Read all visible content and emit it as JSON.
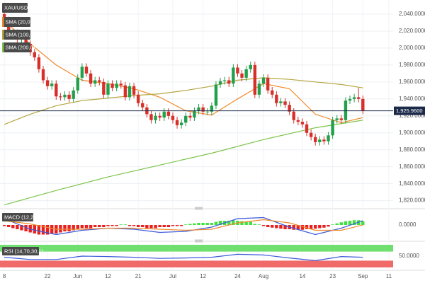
{
  "chart_data": [
    {
      "type": "candlestick",
      "title": "XAU/USD",
      "up_color": "#22a04b",
      "down_color": "#d7302a",
      "open": [
        2040,
        2033,
        2015,
        2018,
        2010,
        2012,
        2005,
        1995,
        1989,
        1975,
        1962,
        1955,
        1958,
        1943,
        1942,
        1945,
        1940,
        1950,
        1965,
        1978,
        1970,
        1958,
        1962,
        1960,
        1945,
        1958,
        1953,
        1958,
        1956,
        1942,
        1955,
        1945,
        1935,
        1930,
        1922,
        1915,
        1920,
        1918,
        1925,
        1920,
        1915,
        1909,
        1912,
        1920,
        1918,
        1926,
        1930,
        1925,
        1925,
        1932,
        1957,
        1961,
        1962,
        1958,
        1977,
        1970,
        1965,
        1975,
        1980,
        1945,
        1958,
        1965,
        1950,
        1945,
        1935,
        1937,
        1933,
        1925,
        1915,
        1913,
        1910,
        1900,
        1895,
        1889,
        1892,
        1890,
        1897,
        1915,
        1917,
        1915,
        1938,
        1940,
        1942,
        1940
      ],
      "high": [
        2044,
        2037,
        2022,
        2022,
        2016,
        2016,
        2009,
        1999,
        1993,
        1979,
        1966,
        1962,
        1962,
        1947,
        1949,
        1949,
        1954,
        1969,
        1982,
        1982,
        1974,
        1966,
        1966,
        1964,
        1962,
        1962,
        1962,
        1962,
        1960,
        1959,
        1959,
        1949,
        1939,
        1934,
        1926,
        1924,
        1924,
        1929,
        1929,
        1924,
        1919,
        1916,
        1924,
        1924,
        1930,
        1934,
        1934,
        1929,
        1936,
        1961,
        1965,
        1966,
        1966,
        1981,
        1981,
        1974,
        1979,
        1984,
        1984,
        1962,
        1969,
        1969,
        1954,
        1949,
        1941,
        1941,
        1937,
        1929,
        1919,
        1917,
        1914,
        1904,
        1899,
        1896,
        1896,
        1901,
        1919,
        1921,
        1921,
        1942,
        1944,
        1946,
        1953,
        1944
      ],
      "low": [
        2029,
        2011,
        2011,
        2006,
        2006,
        2001,
        1991,
        1985,
        1971,
        1958,
        1951,
        1951,
        1939,
        1938,
        1938,
        1936,
        1936,
        1946,
        1961,
        1966,
        1954,
        1954,
        1956,
        1941,
        1941,
        1949,
        1949,
        1952,
        1938,
        1938,
        1941,
        1931,
        1926,
        1918,
        1911,
        1911,
        1914,
        1914,
        1916,
        1911,
        1905,
        1905,
        1908,
        1914,
        1914,
        1922,
        1921,
        1921,
        1921,
        1928,
        1953,
        1957,
        1954,
        1954,
        1966,
        1961,
        1961,
        1971,
        1941,
        1941,
        1954,
        1946,
        1941,
        1931,
        1931,
        1929,
        1921,
        1911,
        1909,
        1906,
        1896,
        1891,
        1885,
        1885,
        1886,
        1886,
        1893,
        1911,
        1911,
        1911,
        1934,
        1936,
        1936,
        1922
      ],
      "close": [
        2033,
        2015,
        2018,
        2010,
        2012,
        2005,
        1995,
        1989,
        1975,
        1962,
        1955,
        1958,
        1943,
        1942,
        1945,
        1940,
        1950,
        1965,
        1978,
        1970,
        1958,
        1962,
        1960,
        1945,
        1958,
        1953,
        1958,
        1956,
        1942,
        1955,
        1945,
        1935,
        1930,
        1922,
        1915,
        1920,
        1918,
        1925,
        1920,
        1915,
        1909,
        1912,
        1920,
        1918,
        1926,
        1930,
        1925,
        1925,
        1932,
        1957,
        1961,
        1962,
        1958,
        1977,
        1970,
        1965,
        1975,
        1980,
        1945,
        1958,
        1965,
        1950,
        1945,
        1935,
        1937,
        1933,
        1925,
        1915,
        1913,
        1910,
        1900,
        1895,
        1889,
        1892,
        1890,
        1897,
        1915,
        1917,
        1915,
        1938,
        1940,
        1942,
        1940,
        1925.96
      ],
      "last_price": {
        "value": 1925.96,
        "label": "1,925.9600"
      },
      "last_color": "#1c2a4a",
      "series": [
        {
          "name": "SMA (20,0)",
          "color": "#ef8a2a",
          "x": [
            0,
            6,
            12,
            18,
            24,
            30,
            36,
            42,
            48,
            54,
            60,
            66,
            72,
            78,
            83
          ],
          "values": [
            2032,
            2005,
            1980,
            1962,
            1958,
            1952,
            1942,
            1926,
            1921,
            1940,
            1958,
            1952,
            1922,
            1912,
            1918
          ]
        },
        {
          "name": "SMA (100,0)",
          "color": "#b5a640",
          "x": [
            0,
            6,
            12,
            18,
            24,
            30,
            36,
            42,
            48,
            54,
            60,
            66,
            72,
            78,
            83
          ],
          "values": [
            1910,
            1922,
            1932,
            1938,
            1941,
            1944,
            1946,
            1950,
            1955,
            1962,
            1965,
            1963,
            1960,
            1957,
            1953
          ]
        },
        {
          "name": "SMA (200,0)",
          "color": "#7cc44a",
          "x": [
            0,
            12,
            24,
            36,
            48,
            60,
            72,
            83
          ],
          "values": [
            1815,
            1832,
            1848,
            1862,
            1876,
            1892,
            1906,
            1915
          ]
        }
      ],
      "ylim": [
        1813,
        2055
      ],
      "yticks": [
        {
          "value": 2040,
          "label": "2,040.0000"
        },
        {
          "value": 2020,
          "label": "2,020.0000"
        },
        {
          "value": 2000,
          "label": "2,000.0000"
        },
        {
          "value": 1980,
          "label": "1,980.0000"
        },
        {
          "value": 1960,
          "label": "1,960.0000"
        },
        {
          "value": 1940,
          "label": "1,940.0000"
        },
        {
          "value": 1920,
          "label": "1,920.0000"
        },
        {
          "value": 1900,
          "label": "1,900.0000"
        },
        {
          "value": 1880,
          "label": "1,880.0000"
        },
        {
          "value": 1860,
          "label": "1,860.0000"
        },
        {
          "value": 1840,
          "label": "1,840.0000"
        },
        {
          "value": 1820,
          "label": "1,820.0000"
        }
      ],
      "xlim": [
        -1,
        90
      ],
      "xticks": [
        {
          "value": 0,
          "label": "8"
        },
        {
          "value": 10,
          "label": "22"
        },
        {
          "value": 17,
          "label": "Jun"
        },
        {
          "value": 24,
          "label": "12"
        },
        {
          "value": 31,
          "label": "21"
        },
        {
          "value": 39,
          "label": "Jul"
        },
        {
          "value": 46,
          "label": "12"
        },
        {
          "value": 54,
          "label": "24"
        },
        {
          "value": 60,
          "label": "Aug"
        },
        {
          "value": 69,
          "label": "14"
        },
        {
          "value": 76,
          "label": "23"
        },
        {
          "value": 83,
          "label": "Sep"
        },
        {
          "value": 89,
          "label": "11"
        }
      ],
      "grid": true
    },
    {
      "type": "macd",
      "title": "MACD (12,26,9)",
      "up_color": "#3fe03f",
      "down_color": "#e82020",
      "histogram": [
        -1,
        -2,
        -3,
        -4,
        -5,
        -6,
        -7,
        -8,
        -9,
        -9,
        -9,
        -8,
        -8,
        -7,
        -6,
        -6,
        -5,
        -4,
        -3,
        -3,
        -3,
        -2,
        -2,
        -2,
        -1,
        -1,
        -1,
        0.5,
        0.5,
        -1,
        -1,
        -2,
        -2,
        -3,
        -3,
        -3,
        -2,
        -2,
        -2,
        -1,
        -1,
        -1,
        0.5,
        1,
        1.5,
        2,
        2,
        2,
        2,
        3,
        4,
        4,
        4,
        4.5,
        4,
        3.5,
        3,
        3,
        1,
        0.5,
        -1,
        -2,
        -2.5,
        -3,
        -3.5,
        -4,
        -4,
        -4.5,
        -4.5,
        -4.5,
        -4,
        -4,
        -3.5,
        -3,
        -2.5,
        -1.5,
        0.5,
        1.5,
        2.5,
        3.5,
        4,
        4.5,
        4.5,
        3.5
      ],
      "series": [
        {
          "color": "#3b5bd9",
          "x": [
            0,
            6,
            12,
            18,
            24,
            30,
            36,
            42,
            48,
            54,
            60,
            66,
            72,
            78,
            83
          ],
          "values": [
            6,
            -4,
            -9,
            -5,
            -3,
            -4,
            -7,
            -6,
            -2,
            6,
            7,
            -2,
            -9,
            -3,
            4
          ]
        },
        {
          "color": "#ef8a2a",
          "x": [
            0,
            6,
            12,
            18,
            24,
            30,
            36,
            42,
            48,
            54,
            60,
            66,
            72,
            78,
            83
          ],
          "values": [
            4,
            1,
            -4,
            -4,
            -3,
            -3,
            -4,
            -5,
            -4,
            2,
            5,
            2,
            -5,
            -5,
            0
          ]
        }
      ],
      "ylim": [
        -12,
        12
      ],
      "yticks": [
        {
          "value": 0,
          "label": "0.0000"
        }
      ]
    },
    {
      "type": "rsi",
      "title": "RSI (14,70,30,1)",
      "bands": [
        70,
        30
      ],
      "band_colors": [
        "#6fe06f",
        "#f06a6a"
      ],
      "series": [
        {
          "color": "#3b5bd9",
          "x": [
            0,
            6,
            12,
            18,
            24,
            30,
            36,
            42,
            48,
            54,
            60,
            66,
            72,
            78,
            83
          ],
          "values": [
            45,
            35,
            35,
            50,
            48,
            45,
            40,
            42,
            45,
            58,
            55,
            42,
            30,
            48,
            45
          ]
        }
      ],
      "ylim": [
        0,
        100
      ],
      "yticks": [
        {
          "value": 50,
          "label": "50.0000"
        }
      ]
    }
  ]
}
